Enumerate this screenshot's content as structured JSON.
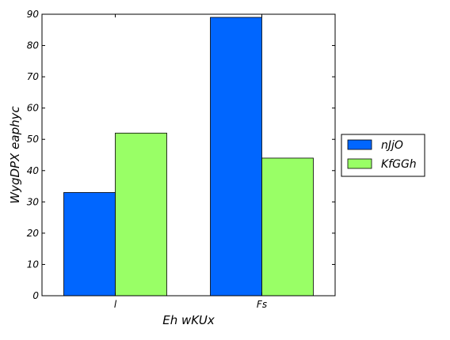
{
  "chart_data": {
    "type": "bar",
    "categories": [
      "l",
      "Fs"
    ],
    "series": [
      {
        "name": "nJjO",
        "values": [
          33,
          89
        ],
        "color": "#0066ff"
      },
      {
        "name": "KfGGh",
        "values": [
          52,
          44
        ],
        "color": "#99ff66"
      }
    ],
    "xlabel": "Eh wKUx",
    "ylabel": "WygDPX eaphyc",
    "ylim": [
      0,
      90
    ],
    "yticks": [
      0,
      10,
      20,
      30,
      40,
      50,
      60,
      70,
      80,
      90
    ],
    "grid": false,
    "legend": "outside-right"
  }
}
